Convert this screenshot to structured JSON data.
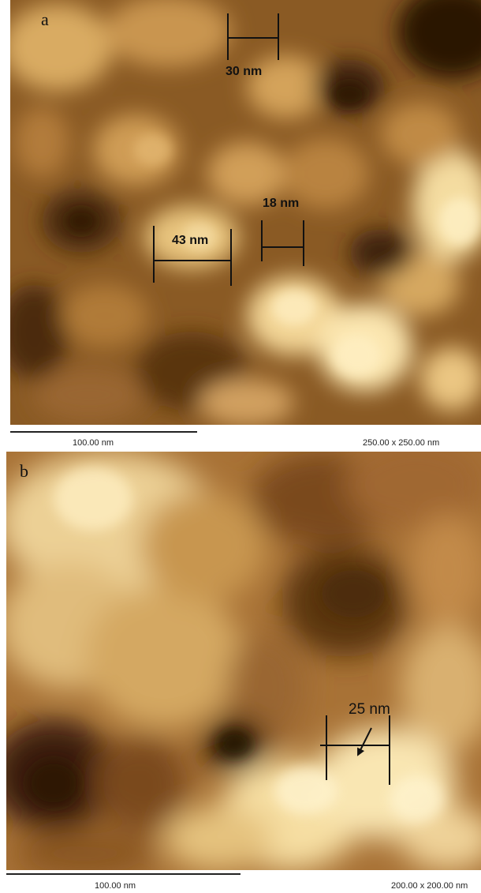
{
  "panel_a": {
    "letter": "a",
    "measurements": [
      "30 nm",
      "18  nm",
      "43  nm"
    ],
    "scale_bar_label": "100.00 nm",
    "scan_size": "250.00 x 250.00 nm"
  },
  "panel_b": {
    "letter": "b",
    "measurement": "25 nm",
    "scale_bar_label": "100.00 nm",
    "scan_size": "200.00 x 200.00 nm"
  },
  "colors": {
    "dark": "#3a1e08",
    "mid": "#a8712e",
    "light": "#f2dba0",
    "highlight": "#fff3cc"
  }
}
